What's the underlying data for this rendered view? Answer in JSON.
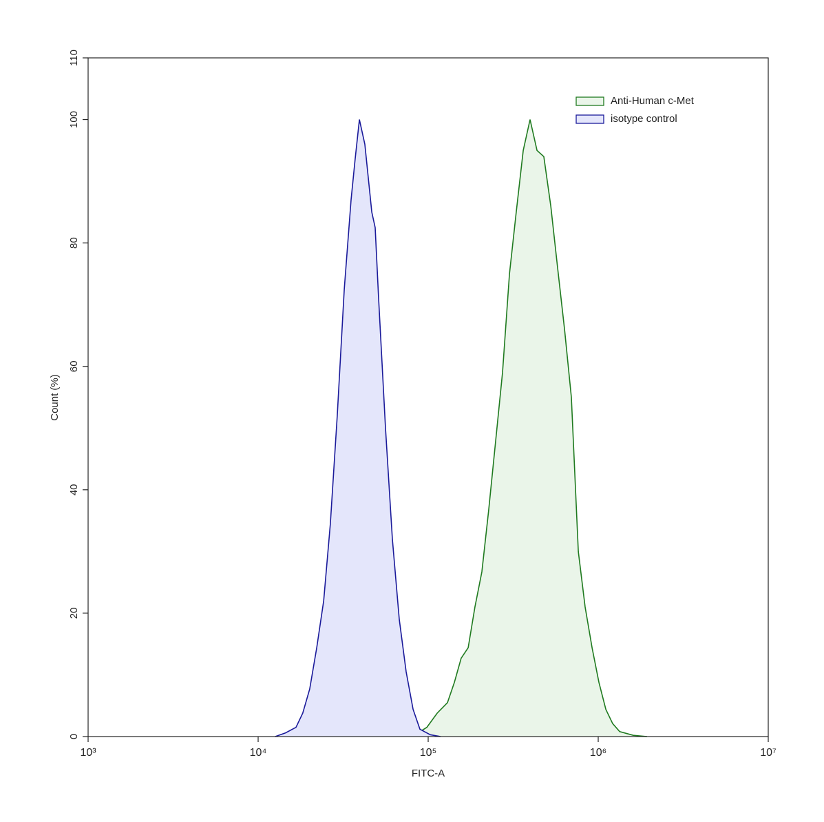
{
  "chart_data": {
    "type": "area",
    "x_label": "FITC-A",
    "y_label": "Count (%)",
    "x_log": true,
    "xlim": [
      1000,
      10000000
    ],
    "xticks": [
      {
        "value": 1000,
        "label": "10³"
      },
      {
        "value": 10000,
        "label": "10⁴"
      },
      {
        "value": 100000,
        "label": "10⁵"
      },
      {
        "value": 1000000,
        "label": "10⁶"
      },
      {
        "value": 10000000,
        "label": "10⁷"
      }
    ],
    "ylim": [
      0,
      110
    ],
    "yticks": [
      0,
      20,
      40,
      60,
      80,
      100,
      110
    ],
    "legend_position": "upper right",
    "series": [
      {
        "name": "Anti-Human c-Met",
        "color": "#1f7a1f",
        "fill": "#eaf5e9",
        "x": [
          81500,
          98200,
          113000,
          129800,
          142600,
          156300,
          171800,
          188400,
          207000,
          227000,
          249500,
          273600,
          300600,
          329600,
          362200,
          397200,
          436500,
          478600,
          526000,
          576800,
          633900,
          695000,
          763800,
          837500,
          920400,
          1009000,
          1109000,
          1216000,
          1337000,
          1607000,
          1936000
        ],
        "values": [
          0.1,
          1.5,
          3.8,
          5.5,
          8.8,
          12.7,
          14.4,
          21,
          26.7,
          36.7,
          48,
          59,
          75,
          85,
          95,
          100,
          95,
          94,
          86,
          76,
          66,
          55,
          30,
          21,
          14.4,
          8.8,
          4.4,
          2.1,
          0.8,
          0.2,
          0
        ]
      },
      {
        "name": "isotype control",
        "color": "#1a1a9a",
        "fill": "#e4e6fb",
        "x": [
          12600,
          14500,
          16700,
          18300,
          20100,
          22100,
          24300,
          26600,
          29200,
          32100,
          35200,
          37200,
          39400,
          42400,
          46600,
          48800,
          51100,
          56100,
          61600,
          67600,
          74200,
          81500,
          89400,
          102800,
          118200
        ],
        "values": [
          0,
          0.6,
          1.5,
          3.8,
          7.7,
          14.4,
          22,
          34.5,
          52,
          72.5,
          87,
          93.6,
          100,
          96,
          85,
          82.5,
          71,
          50,
          32,
          19,
          10.5,
          4.4,
          1.2,
          0.3,
          0
        ]
      }
    ]
  }
}
